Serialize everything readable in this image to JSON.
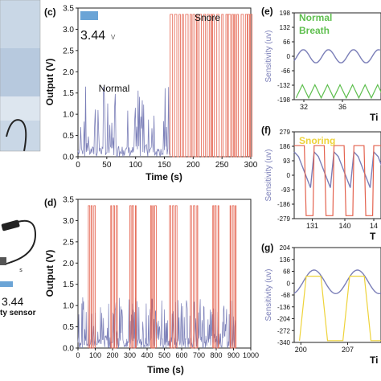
{
  "chart_data": [
    {
      "panel": "(c)",
      "type": "line",
      "xlabel": "Time (s)",
      "ylabel": "Output (V)",
      "xlim": [
        0,
        300
      ],
      "ylim": [
        0,
        3.5
      ],
      "xticks": [
        "0",
        "50",
        "100",
        "150",
        "200",
        "250",
        "300"
      ],
      "yticks": [
        "0.0",
        "0.5",
        "1.0",
        "1.5",
        "2.0",
        "2.5",
        "3.0",
        "3.5"
      ],
      "inset_value": "3.44",
      "inset_unit": "V",
      "series": [
        {
          "name": "Normal",
          "color": "#7b7fb8",
          "x_range": [
            0,
            160
          ],
          "max": 1.7
        },
        {
          "name": "Snore",
          "color": "#e4624e",
          "x_range": [
            160,
            300
          ],
          "high": 3.35,
          "low": 0.0
        }
      ]
    },
    {
      "panel": "(d)",
      "type": "line",
      "xlabel": "Time (s)",
      "ylabel": "Output (V)",
      "xlim": [
        0,
        1000
      ],
      "ylim": [
        0,
        3.5
      ],
      "xticks": [
        "0",
        "100",
        "200",
        "300",
        "400",
        "500",
        "600",
        "700",
        "800",
        "900",
        "1000"
      ],
      "yticks": [
        "0.0",
        "0.5",
        "1.0",
        "1.5",
        "2.0",
        "2.5",
        "3.0",
        "3.5"
      ],
      "series": [
        {
          "name": "",
          "color": "#7b7fb8",
          "x_range": [
            0,
            910
          ],
          "max": 1.2
        },
        {
          "name": "",
          "color": "#e4624e",
          "bursts_x": [
            60,
            190,
            300,
            420,
            530,
            650,
            780,
            880
          ],
          "high": 3.35
        }
      ]
    },
    {
      "panel": "(e)",
      "type": "line",
      "ylabel": "Sensitivity (uv)",
      "xlim": [
        31,
        40
      ],
      "ylim": [
        -198,
        198
      ],
      "xticks": [
        "32",
        "36"
      ],
      "yticks": [
        "198",
        "132",
        "66",
        "0",
        "-66",
        "-132",
        "-198"
      ],
      "xlabel_partial": "Ti",
      "annotation": "Normal Breath",
      "series": [
        {
          "name": "",
          "color": "#7b7fb8",
          "shape": "sine",
          "amplitude": 30,
          "offset": 0
        },
        {
          "name": "",
          "color": "#5fbf4f",
          "shape": "triangle",
          "low": -190,
          "high": -130
        }
      ]
    },
    {
      "panel": "(f)",
      "type": "line",
      "ylabel": "Sensitivity (uv)",
      "xlim": [
        126,
        150
      ],
      "ylim": [
        -279,
        279
      ],
      "xticks": [
        "131",
        "140",
        "14"
      ],
      "yticks": [
        "279",
        "186",
        "93",
        "0",
        "-93",
        "-186",
        "-279"
      ],
      "xlabel_partial": "T",
      "annotation": "Snoring",
      "series": [
        {
          "name": "",
          "color": "#7b7fb8",
          "shape": "sawtooth",
          "low": -80,
          "high": 150
        },
        {
          "name": "",
          "color": "#e4624e",
          "shape": "square",
          "low": -260,
          "high": 190
        }
      ]
    },
    {
      "panel": "(g)",
      "type": "line",
      "ylabel": "Sensitivity (uv)",
      "xlim": [
        199,
        212
      ],
      "ylim": [
        -340,
        204
      ],
      "xticks": [
        "200",
        "207"
      ],
      "yticks": [
        "204",
        "136",
        "68",
        "0",
        "-68",
        "-136",
        "-204",
        "-272",
        "-340"
      ],
      "xlabel_partial": "Ti",
      "series": [
        {
          "name": "",
          "color": "#7b7fb8",
          "shape": "wave",
          "low": -60,
          "high": 75
        },
        {
          "name": "",
          "color": "#eed33a",
          "shape": "trapezoid",
          "low": -330,
          "high": 40
        }
      ]
    }
  ],
  "photo_captions": {
    "sensor_value": "3.44",
    "sensor_label": "ty sensor",
    "lead_mark": "s"
  }
}
